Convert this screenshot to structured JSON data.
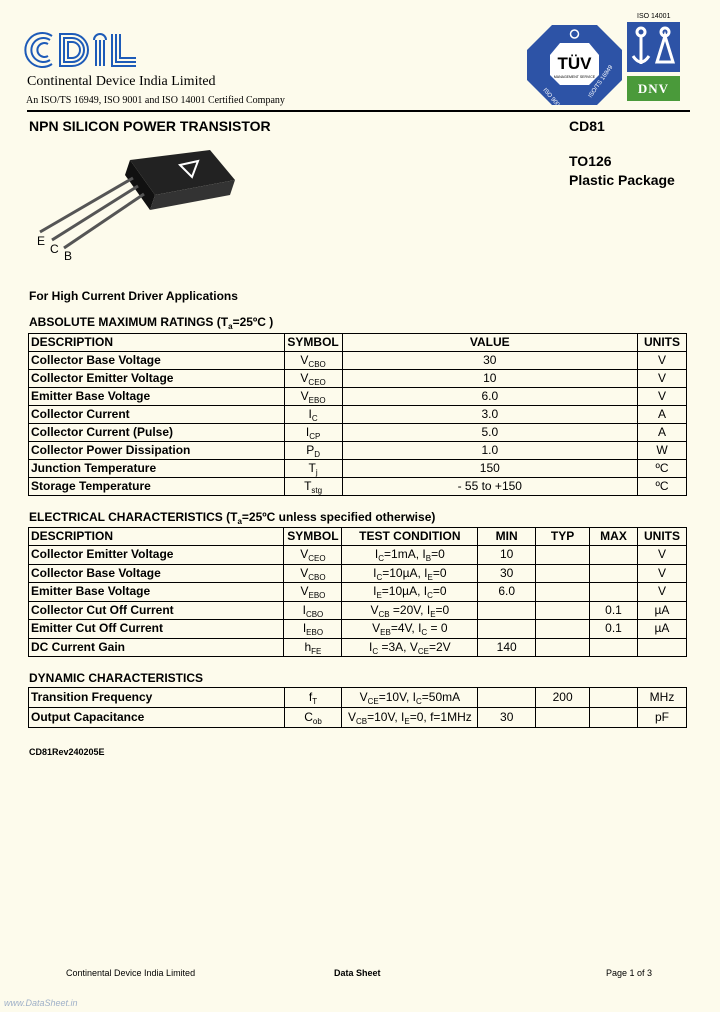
{
  "header": {
    "logo_text": "CDIL",
    "company": "Continental Device India Limited",
    "certification": "An ISO/TS 16949,  ISO 9001 and ISO 14001 Certified Company",
    "tuv_logo": {
      "text": "TÜV",
      "sub": "MANAGEMENT SERVICE",
      "left": "ISO 9001",
      "right": "ISO/TS 16949"
    },
    "iso14001_label": "ISO 14001",
    "dnv_logo": "DNV",
    "colors": {
      "tuv_blue": "#2d53a6",
      "dnv_green": "#4a9a3a",
      "cdil_blue": "#1d5bb8"
    }
  },
  "product": {
    "title": "NPN SILICON POWER TRANSISTOR",
    "part_number": "CD81",
    "package": "TO126",
    "package_type": "Plastic Package",
    "pins": [
      "E",
      "C",
      "B"
    ],
    "application": "For High Current Driver Applications"
  },
  "absolute_max": {
    "title": "ABSOLUTE MAXIMUM RATINGS (T{a}=25ºC )",
    "headers": [
      "DESCRIPTION",
      "SYMBOL",
      "VALUE",
      "UNITS"
    ],
    "rows": [
      [
        "Collector Base Voltage",
        "V{CBO}",
        "30",
        "V"
      ],
      [
        "Collector Emitter Voltage",
        "V{CEO}",
        "10",
        "V"
      ],
      [
        "Emitter Base Voltage",
        "V{EBO}",
        "6.0",
        "V"
      ],
      [
        "Collector Current",
        "I{C}",
        "3.0",
        "A"
      ],
      [
        "Collector Current (Pulse)",
        "I{CP}",
        "5.0",
        "A"
      ],
      [
        "Collector Power Dissipation",
        "P{D}",
        "1.0",
        "W"
      ],
      [
        "Junction Temperature",
        "T{j}",
        "150",
        "ºC"
      ],
      [
        "Storage Temperature",
        "T{stg}",
        "- 55 to +150",
        "ºC"
      ]
    ]
  },
  "electrical": {
    "title": "ELECTRICAL CHARACTERISTICS (T{a}=25ºC unless specified otherwise)",
    "headers": [
      "DESCRIPTION",
      "SYMBOL",
      "TEST CONDITION",
      "MIN",
      "TYP",
      "MAX",
      "UNITS"
    ],
    "rows": [
      [
        "Collector Emitter Voltage",
        "V{CEO}",
        "I{C}=1mA, I{B}=0",
        "10",
        "",
        "",
        "V"
      ],
      [
        "Collector Base Voltage",
        "V{CBO}",
        "I{C}=10µA, I{E}=0",
        "30",
        "",
        "",
        "V"
      ],
      [
        "Emitter Base Voltage",
        "V{EBO}",
        "I{E}=10µA, I{C}=0",
        "6.0",
        "",
        "",
        "V"
      ],
      [
        "Collector Cut Off Current",
        "I{CBO}",
        "V{CB} =20V, I{E}=0",
        "",
        "",
        "0.1",
        "µA"
      ],
      [
        "Emitter Cut Off Current",
        "I{EBO}",
        "V{EB}=4V, I{C} = 0",
        "",
        "",
        "0.1",
        "µA"
      ],
      [
        "DC Current Gain",
        "h{FE}",
        "I{C} =3A, V{CE}=2V",
        "140",
        "",
        "",
        ""
      ]
    ]
  },
  "dynamic": {
    "title": "DYNAMIC CHARACTERISTICS",
    "rows": [
      [
        "Transition Frequency",
        "f{T}",
        "V{CE}=10V, I{C}=50mA",
        "",
        "200",
        "",
        "MHz"
      ],
      [
        "Output Capacitance",
        "C{ob}",
        "V{CB}=10V, I{E}=0, f=1MHz",
        "30",
        "",
        "",
        "pF"
      ]
    ]
  },
  "revision": "CD81Rev240205E",
  "footer": {
    "company": "Continental Device India Limited",
    "doc_type": "Data Sheet",
    "page": "Page 1 of 3",
    "watermark": "www.DataSheet.in"
  }
}
